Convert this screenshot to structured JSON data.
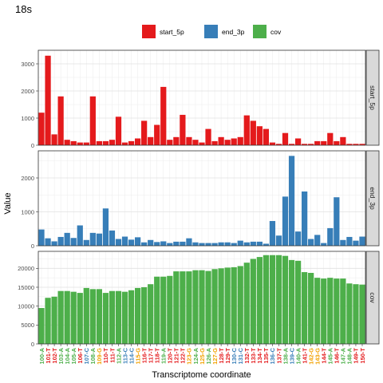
{
  "chart_data": {
    "type": "bar",
    "title": "18s",
    "xlabel": "Transcriptome coordinate",
    "ylabel": "Value",
    "legend": {
      "placement": "top",
      "entries": [
        {
          "name": "start_5p",
          "color": "#e41a1c"
        },
        {
          "name": "end_3p",
          "color": "#377eb8"
        },
        {
          "name": "cov",
          "color": "#4daf4a"
        }
      ]
    },
    "grid": true,
    "categories": [
      "100-A",
      "101-T",
      "102-T",
      "103-A",
      "104-A",
      "105-A",
      "106-T",
      "107-C",
      "108-A",
      "109-G",
      "110-T",
      "111-T",
      "112-A",
      "113-C",
      "114-C",
      "115-G",
      "116-T",
      "117-T",
      "118-T",
      "119-A",
      "120-T",
      "121-T",
      "122-T",
      "123-G",
      "124-A",
      "125-G",
      "126-A",
      "127-G",
      "128-T",
      "129-T",
      "130-C",
      "131-C",
      "132-T",
      "133-T",
      "134-T",
      "135-T",
      "136-C",
      "137-T",
      "138-A",
      "139-C",
      "140-A",
      "141-T",
      "142-G",
      "143-G",
      "144-T",
      "145-A",
      "146-T",
      "147-A",
      "148-A",
      "149-T",
      "150-T"
    ],
    "category_colors": [
      "#4daf4a",
      "#e41a1c",
      "#e41a1c",
      "#4daf4a",
      "#4daf4a",
      "#4daf4a",
      "#e41a1c",
      "#377eb8",
      "#4daf4a",
      "#f2a100",
      "#e41a1c",
      "#e41a1c",
      "#4daf4a",
      "#377eb8",
      "#377eb8",
      "#f2a100",
      "#e41a1c",
      "#e41a1c",
      "#e41a1c",
      "#4daf4a",
      "#e41a1c",
      "#e41a1c",
      "#e41a1c",
      "#f2a100",
      "#4daf4a",
      "#f2a100",
      "#4daf4a",
      "#f2a100",
      "#e41a1c",
      "#e41a1c",
      "#377eb8",
      "#377eb8",
      "#e41a1c",
      "#e41a1c",
      "#e41a1c",
      "#e41a1c",
      "#377eb8",
      "#e41a1c",
      "#4daf4a",
      "#377eb8",
      "#4daf4a",
      "#e41a1c",
      "#f2a100",
      "#f2a100",
      "#e41a1c",
      "#4daf4a",
      "#e41a1c",
      "#4daf4a",
      "#4daf4a",
      "#e41a1c",
      "#e41a1c"
    ],
    "panels": [
      {
        "strip": "start_5p",
        "color": "#e41a1c",
        "ylim": [
          0,
          3500
        ],
        "yticks": [
          0,
          1000,
          2000,
          3000
        ],
        "values": [
          1200,
          3300,
          400,
          1800,
          200,
          150,
          100,
          100,
          1800,
          150,
          150,
          200,
          1050,
          100,
          150,
          250,
          900,
          300,
          750,
          2150,
          200,
          300,
          1120,
          300,
          200,
          100,
          600,
          150,
          300,
          200,
          250,
          300,
          1100,
          900,
          700,
          600,
          100,
          50,
          450,
          50,
          250,
          50,
          50,
          150,
          150,
          450,
          150,
          300,
          50,
          50,
          50
        ]
      },
      {
        "strip": "end_3p",
        "color": "#377eb8",
        "ylim": [
          0,
          2800
        ],
        "yticks": [
          0,
          1000,
          2000
        ],
        "values": [
          480,
          220,
          130,
          260,
          380,
          230,
          600,
          170,
          380,
          360,
          1100,
          450,
          200,
          270,
          180,
          250,
          100,
          170,
          110,
          130,
          80,
          120,
          120,
          220,
          100,
          80,
          80,
          80,
          100,
          100,
          80,
          150,
          100,
          120,
          120,
          60,
          730,
          300,
          1450,
          2650,
          420,
          1600,
          200,
          320,
          80,
          520,
          1430,
          170,
          260,
          150,
          270
        ]
      },
      {
        "strip": "cov",
        "color": "#4daf4a",
        "ylim": [
          0,
          24500
        ],
        "yticks": [
          0,
          5000,
          10000,
          15000,
          20000
        ],
        "values": [
          9500,
          12200,
          12500,
          14000,
          14000,
          13800,
          13500,
          14800,
          14500,
          14500,
          13500,
          14000,
          14000,
          13800,
          14200,
          14800,
          15000,
          15800,
          17800,
          17800,
          18000,
          19200,
          19200,
          19200,
          19500,
          19500,
          19300,
          19800,
          20000,
          20200,
          20300,
          20600,
          21500,
          22500,
          23000,
          23500,
          23500,
          23500,
          23300,
          22200,
          22000,
          19000,
          18800,
          17500,
          17300,
          17500,
          17300,
          17300,
          16000,
          15800,
          15700
        ]
      }
    ]
  }
}
